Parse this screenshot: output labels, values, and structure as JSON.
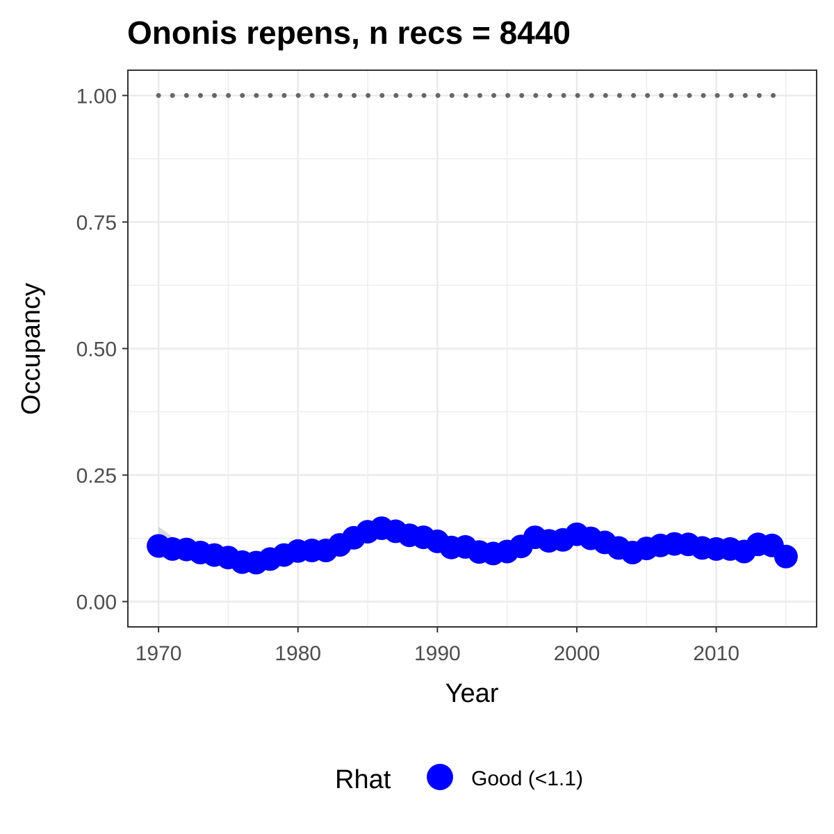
{
  "chart_data": {
    "type": "line",
    "title": "Ononis repens, n recs = 8440",
    "xlabel": "Year",
    "ylabel": "Occupancy",
    "xlim": [
      1967.8,
      2017.2
    ],
    "ylim": [
      -0.05,
      1.05
    ],
    "x_ticks": [
      1970,
      1980,
      1990,
      2000,
      2010
    ],
    "y_ticks": [
      0.0,
      0.25,
      0.5,
      0.75,
      1.0
    ],
    "y_tick_labels": [
      "0.00",
      "0.25",
      "0.50",
      "0.75",
      "1.00"
    ],
    "grid": true,
    "legend": {
      "position": "bottom",
      "title": "Rhat",
      "entries": [
        {
          "label": "Good (<1.1)",
          "color": "#0000ff"
        }
      ]
    },
    "series": [
      {
        "color": "#0000ff",
        "x": [
          1970,
          1971,
          1972,
          1973,
          1974,
          1975,
          1976,
          1977,
          1978,
          1979,
          1980,
          1981,
          1982,
          1983,
          1984,
          1985,
          1986,
          1987,
          1988,
          1989,
          1990,
          1991,
          1992,
          1993,
          1994,
          1995,
          1996,
          1997,
          1998,
          1999,
          2000,
          2001,
          2002,
          2003,
          2004,
          2005,
          2006,
          2007,
          2008,
          2009,
          2010,
          2011,
          2012,
          2013,
          2014,
          2015
        ],
        "y": [
          0.11,
          0.104,
          0.103,
          0.097,
          0.092,
          0.087,
          0.078,
          0.077,
          0.084,
          0.092,
          0.1,
          0.101,
          0.101,
          0.112,
          0.126,
          0.138,
          0.145,
          0.139,
          0.131,
          0.127,
          0.119,
          0.107,
          0.108,
          0.098,
          0.095,
          0.099,
          0.109,
          0.127,
          0.12,
          0.122,
          0.133,
          0.125,
          0.117,
          0.106,
          0.097,
          0.105,
          0.111,
          0.114,
          0.113,
          0.106,
          0.104,
          0.104,
          0.099,
          0.113,
          0.111,
          0.089
        ],
        "ci_lower": [
          0.085,
          0.088,
          0.09,
          0.087,
          0.084,
          0.08,
          0.073,
          0.072,
          0.078,
          0.086,
          0.094,
          0.095,
          0.095,
          0.106,
          0.12,
          0.132,
          0.139,
          0.133,
          0.125,
          0.121,
          0.113,
          0.101,
          0.102,
          0.092,
          0.089,
          0.093,
          0.103,
          0.121,
          0.114,
          0.116,
          0.127,
          0.119,
          0.111,
          0.1,
          0.091,
          0.099,
          0.105,
          0.108,
          0.107,
          0.1,
          0.098,
          0.098,
          0.093,
          0.106,
          0.104,
          0.081
        ],
        "ci_upper": [
          0.148,
          0.128,
          0.118,
          0.108,
          0.1,
          0.094,
          0.084,
          0.083,
          0.09,
          0.098,
          0.106,
          0.107,
          0.107,
          0.118,
          0.132,
          0.144,
          0.151,
          0.145,
          0.137,
          0.133,
          0.125,
          0.113,
          0.114,
          0.104,
          0.101,
          0.105,
          0.115,
          0.133,
          0.126,
          0.128,
          0.139,
          0.131,
          0.123,
          0.112,
          0.103,
          0.111,
          0.117,
          0.12,
          0.119,
          0.112,
          0.11,
          0.11,
          0.105,
          0.12,
          0.118,
          0.098
        ]
      },
      {
        "style": "dotted",
        "color": "#666666",
        "x": [
          1970,
          2015
        ],
        "y": [
          1.0,
          1.0
        ]
      }
    ]
  }
}
